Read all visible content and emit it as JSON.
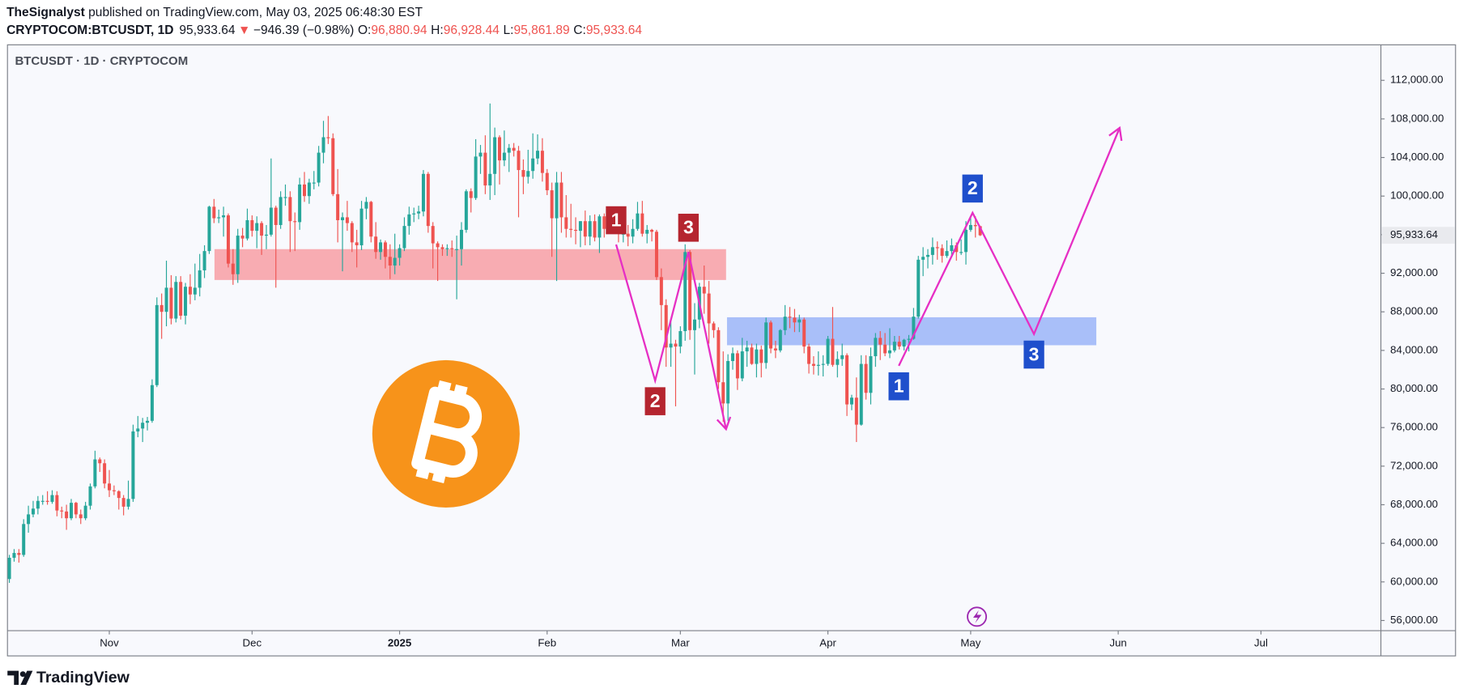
{
  "header": {
    "author": "TheSignalyst",
    "published": " published on TradingView.com, May 03, 2025 06:48:30 EST",
    "symbol": "CRYPTOCOM:BTCUSDT, 1D",
    "last": "95,933.64",
    "arrow": "▼",
    "change": "−946.39 (−0.98%)",
    "fields": [
      {
        "label": "O:",
        "value": "96,880.94"
      },
      {
        "label": "H:",
        "value": "96,928.44"
      },
      {
        "label": "L:",
        "value": "95,861.89"
      },
      {
        "label": "C:",
        "value": "95,933.64"
      }
    ]
  },
  "footer": {
    "brand": "TradingView"
  },
  "chart_data": {
    "type": "candlestick",
    "title": "BTCUSDT · 1D · CRYPTOCOM",
    "up_color": "#26a69a",
    "down_color": "#ef5350",
    "grid": false,
    "last_label": "95,933.64",
    "xlim": [
      -0.4,
      288.2
    ],
    "ylim": [
      54940,
      115680
    ],
    "xticks": [
      {
        "value": 21,
        "label": "Nov"
      },
      {
        "value": 51,
        "label": "Dec"
      },
      {
        "value": 82,
        "label": "2025"
      },
      {
        "value": 113,
        "label": "Feb"
      },
      {
        "value": 141,
        "label": "Mar"
      },
      {
        "value": 172,
        "label": "Apr"
      },
      {
        "value": 202,
        "label": "May"
      },
      {
        "value": 233,
        "label": "Jun"
      },
      {
        "value": 263,
        "label": "Jul"
      }
    ],
    "yticks": [
      {
        "value": 56000,
        "label": "56,000.00"
      },
      {
        "value": 60000,
        "label": "60,000.00"
      },
      {
        "value": 64000,
        "label": "64,000.00"
      },
      {
        "value": 68000,
        "label": "68,000.00"
      },
      {
        "value": 72000,
        "label": "72,000.00"
      },
      {
        "value": 76000,
        "label": "76,000.00"
      },
      {
        "value": 80000,
        "label": "80,000.00"
      },
      {
        "value": 84000,
        "label": "84,000.00"
      },
      {
        "value": 88000,
        "label": "88,000.00"
      },
      {
        "value": 92000,
        "label": "92,000.00"
      },
      {
        "value": 96000,
        "label": "96,000.00"
      },
      {
        "value": 100000,
        "label": "100,000.00"
      },
      {
        "value": 104000,
        "label": "104,000.00"
      },
      {
        "value": 108000,
        "label": "108,000.00"
      },
      {
        "value": 112000,
        "label": "112,000.00"
      }
    ],
    "zones": [
      {
        "color": "#f7a3aa",
        "x": [
          43.1,
          150.6
        ],
        "y": [
          91300,
          94500
        ]
      },
      {
        "color": "#a0b8f8",
        "x": [
          150.8,
          228.4
        ],
        "y": [
          84535,
          87435
        ]
      }
    ],
    "waves": [
      {
        "color": "#e62fc4",
        "label_color": "#b5252f",
        "labels": [
          "1",
          "2",
          "3"
        ],
        "label_side": [
          "above",
          "below",
          "above"
        ],
        "x": [
          127.5,
          135.7,
          142.7,
          150.6
        ],
        "y": [
          94979,
          80859,
          94205,
          75830
        ]
      },
      {
        "color": "#e62fc4",
        "label_color": "#1f4fcc",
        "labels": [
          "1",
          "2",
          "3"
        ],
        "label_side": [
          "below",
          "above",
          "below"
        ],
        "x": [
          186.9,
          202.4,
          215.3,
          233.3
        ],
        "y": [
          82406,
          98267,
          85694,
          107068
        ]
      }
    ],
    "ohlc": [
      [
        60300,
        62800,
        59900,
        62500
      ],
      [
        62500,
        63400,
        62100,
        63000
      ],
      [
        63000,
        63400,
        62000,
        62800
      ],
      [
        62800,
        66500,
        62600,
        66000
      ],
      [
        66000,
        67900,
        65100,
        67000
      ],
      [
        67000,
        68400,
        66700,
        67600
      ],
      [
        67600,
        68900,
        67000,
        68400
      ],
      [
        68400,
        69000,
        68000,
        68400
      ],
      [
        68400,
        69400,
        68000,
        68300
      ],
      [
        68300,
        69500,
        68100,
        69000
      ],
      [
        69000,
        69400,
        66800,
        67400
      ],
      [
        67400,
        67800,
        66600,
        67300
      ],
      [
        67300,
        68000,
        65400,
        66600
      ],
      [
        66600,
        68600,
        66400,
        68200
      ],
      [
        68200,
        68300,
        66600,
        67000
      ],
      [
        67000,
        67500,
        66000,
        66600
      ],
      [
        66600,
        68300,
        66400,
        67900
      ],
      [
        67900,
        70200,
        67500,
        69900
      ],
      [
        69900,
        73600,
        69700,
        72700
      ],
      [
        72700,
        72900,
        71400,
        72300
      ],
      [
        72300,
        72700,
        69700,
        70200
      ],
      [
        70200,
        71600,
        68800,
        69500
      ],
      [
        69500,
        70000,
        69000,
        69400
      ],
      [
        69400,
        69500,
        67500,
        68700
      ],
      [
        68700,
        69000,
        66900,
        67800
      ],
      [
        67800,
        70500,
        67500,
        68600
      ],
      [
        68600,
        76300,
        68300,
        75600
      ],
      [
        75600,
        77200,
        75000,
        75900
      ],
      [
        75900,
        77000,
        74500,
        76500
      ],
      [
        76500,
        77100,
        75700,
        76700
      ],
      [
        76700,
        81000,
        76500,
        80400
      ],
      [
        80400,
        89500,
        80200,
        88700
      ],
      [
        88700,
        89900,
        85200,
        88000
      ],
      [
        88000,
        93300,
        86500,
        90500
      ],
      [
        90500,
        91800,
        86700,
        87300
      ],
      [
        87300,
        91700,
        86900,
        91100
      ],
      [
        91100,
        91700,
        87200,
        87600
      ],
      [
        87600,
        91000,
        86700,
        90600
      ],
      [
        90600,
        91900,
        88800,
        89800
      ],
      [
        89800,
        93000,
        89200,
        90500
      ],
      [
        90500,
        94000,
        89600,
        92300
      ],
      [
        92300,
        94900,
        91500,
        94300
      ],
      [
        94300,
        99000,
        94000,
        98900
      ],
      [
        98900,
        99700,
        97200,
        97700
      ],
      [
        97700,
        98600,
        97200,
        97800
      ],
      [
        97800,
        98900,
        95800,
        98000
      ],
      [
        98000,
        98200,
        92600,
        93000
      ],
      [
        93000,
        94500,
        90800,
        91900
      ],
      [
        91900,
        96600,
        91000,
        95900
      ],
      [
        95900,
        96700,
        94700,
        95600
      ],
      [
        95600,
        98700,
        95400,
        97500
      ],
      [
        97500,
        98000,
        95800,
        96400
      ],
      [
        96400,
        97900,
        94600,
        97200
      ],
      [
        97200,
        97400,
        93900,
        95900
      ],
      [
        95900,
        97000,
        94500,
        96000
      ],
      [
        96000,
        103900,
        95800,
        98800
      ],
      [
        98800,
        99000,
        90500,
        97000
      ],
      [
        97000,
        100500,
        96600,
        99900
      ],
      [
        99900,
        101200,
        99000,
        99900
      ],
      [
        99900,
        100500,
        94200,
        97400
      ],
      [
        97400,
        98300,
        94300,
        97300
      ],
      [
        97300,
        101900,
        96500,
        101200
      ],
      [
        101200,
        102500,
        99400,
        100000
      ],
      [
        100000,
        101800,
        99200,
        101400
      ],
      [
        101400,
        102600,
        100700,
        101400
      ],
      [
        101400,
        105200,
        101000,
        104500
      ],
      [
        104500,
        107800,
        103400,
        106100
      ],
      [
        106100,
        108300,
        105400,
        106000
      ],
      [
        106000,
        106500,
        100000,
        100200
      ],
      [
        100200,
        102800,
        95200,
        97500
      ],
      [
        97500,
        98300,
        92200,
        97800
      ],
      [
        97800,
        99500,
        96400,
        97200
      ],
      [
        97200,
        97400,
        94200,
        95200
      ],
      [
        95200,
        96500,
        92600,
        94900
      ],
      [
        94900,
        99500,
        94400,
        98700
      ],
      [
        98700,
        99900,
        97600,
        99400
      ],
      [
        99400,
        99500,
        95200,
        95800
      ],
      [
        95800,
        97300,
        93500,
        94200
      ],
      [
        94200,
        95500,
        93400,
        95200
      ],
      [
        95200,
        95400,
        92500,
        93700
      ],
      [
        93700,
        95000,
        91400,
        92800
      ],
      [
        92800,
        96100,
        91900,
        93600
      ],
      [
        93600,
        95000,
        92800,
        94600
      ],
      [
        94600,
        97800,
        94300,
        96900
      ],
      [
        96900,
        98900,
        96000,
        98100
      ],
      [
        98100,
        98800,
        97300,
        98200
      ],
      [
        98200,
        99000,
        97600,
        98400
      ],
      [
        98400,
        102700,
        97900,
        102300
      ],
      [
        102300,
        102500,
        96200,
        96900
      ],
      [
        96900,
        97300,
        92500,
        95100
      ],
      [
        95100,
        95300,
        91200,
        94700
      ],
      [
        94700,
        95000,
        93800,
        94500
      ],
      [
        94500,
        95000,
        93800,
        94600
      ],
      [
        94600,
        95400,
        93700,
        94500
      ],
      [
        94500,
        95900,
        89300,
        94500
      ],
      [
        94500,
        97300,
        92800,
        96500
      ],
      [
        96500,
        100700,
        96200,
        100500
      ],
      [
        100500,
        100800,
        98300,
        99800
      ],
      [
        99800,
        105900,
        99600,
        104100
      ],
      [
        104100,
        105300,
        102300,
        104500
      ],
      [
        104500,
        106300,
        100200,
        101100
      ],
      [
        101100,
        109600,
        99600,
        102300
      ],
      [
        102300,
        107100,
        100100,
        106100
      ],
      [
        106100,
        106300,
        101200,
        103700
      ],
      [
        103700,
        106800,
        103100,
        104500
      ],
      [
        104500,
        105400,
        102500,
        105000
      ],
      [
        105000,
        105500,
        104100,
        104700
      ],
      [
        104700,
        105200,
        97800,
        102700
      ],
      [
        102700,
        103800,
        100200,
        102000
      ],
      [
        102000,
        104800,
        101300,
        102600
      ],
      [
        102600,
        106500,
        101800,
        103900
      ],
      [
        103900,
        106400,
        103300,
        104700
      ],
      [
        104700,
        106000,
        101500,
        102400
      ],
      [
        102400,
        102800,
        100100,
        100600
      ],
      [
        100600,
        101400,
        93700,
        97700
      ],
      [
        97700,
        102500,
        91200,
        101400
      ],
      [
        101400,
        102500,
        96200,
        97800
      ],
      [
        97800,
        100100,
        95700,
        96600
      ],
      [
        96600,
        99200,
        95700,
        96500
      ],
      [
        96500,
        97800,
        95000,
        96400
      ],
      [
        96400,
        97400,
        94700,
        97400
      ],
      [
        97400,
        98500,
        94900,
        95800
      ],
      [
        95800,
        98000,
        94900,
        97400
      ],
      [
        97400,
        98100,
        95300,
        95700
      ],
      [
        95700,
        98100,
        94100,
        97900
      ],
      [
        97900,
        98200,
        95700,
        96600
      ],
      [
        96600,
        98700,
        96300,
        97500
      ],
      [
        97500,
        97700,
        96500,
        97500
      ],
      [
        97500,
        97800,
        95200,
        96100
      ],
      [
        96100,
        96700,
        95200,
        96100
      ],
      [
        96100,
        97000,
        94800,
        95800
      ],
      [
        95800,
        97600,
        95100,
        96600
      ],
      [
        96600,
        99400,
        96400,
        98200
      ],
      [
        98200,
        99500,
        95800,
        96100
      ],
      [
        96100,
        97000,
        95100,
        96500
      ],
      [
        96500,
        96600,
        95300,
        96300
      ],
      [
        96300,
        96500,
        91300,
        91600
      ],
      [
        91600,
        92500,
        86100,
        88700
      ],
      [
        88700,
        89300,
        82300,
        84300
      ],
      [
        84300,
        87000,
        82300,
        84700
      ],
      [
        84700,
        85100,
        78200,
        84400
      ],
      [
        84400,
        86500,
        83700,
        86000
      ],
      [
        86000,
        95000,
        85000,
        94200
      ],
      [
        94200,
        94400,
        85100,
        86100
      ],
      [
        86100,
        88900,
        81500,
        87200
      ],
      [
        87200,
        91000,
        86300,
        90600
      ],
      [
        90600,
        92800,
        87800,
        89900
      ],
      [
        89900,
        91200,
        84700,
        86800
      ],
      [
        86800,
        87000,
        85300,
        86100
      ],
      [
        86100,
        86400,
        80000,
        80700
      ],
      [
        80700,
        83900,
        76600,
        78500
      ],
      [
        78500,
        83600,
        76700,
        82900
      ],
      [
        82900,
        84300,
        82000,
        83700
      ],
      [
        83700,
        84000,
        79900,
        81100
      ],
      [
        81100,
        85300,
        80800,
        83900
      ],
      [
        83900,
        85000,
        82300,
        84300
      ],
      [
        84300,
        84700,
        82500,
        82600
      ],
      [
        82600,
        84700,
        81200,
        84100
      ],
      [
        84100,
        84500,
        81200,
        82700
      ],
      [
        82700,
        87400,
        82100,
        86900
      ],
      [
        86900,
        87100,
        83700,
        84200
      ],
      [
        84200,
        85000,
        83200,
        84000
      ],
      [
        84000,
        86200,
        83800,
        86100
      ],
      [
        86100,
        88700,
        85600,
        87500
      ],
      [
        87500,
        88500,
        86300,
        87400
      ],
      [
        87400,
        88300,
        85900,
        86900
      ],
      [
        86900,
        87700,
        85900,
        87200
      ],
      [
        87200,
        87400,
        83700,
        84400
      ],
      [
        84400,
        84700,
        81600,
        82600
      ],
      [
        82600,
        83400,
        81500,
        82400
      ],
      [
        82400,
        83900,
        81400,
        82500
      ],
      [
        82500,
        83500,
        81300,
        82600
      ],
      [
        82600,
        85500,
        82400,
        85200
      ],
      [
        85200,
        88500,
        82300,
        82500
      ],
      [
        82500,
        83900,
        81200,
        83100
      ],
      [
        83100,
        84700,
        82400,
        83500
      ],
      [
        83500,
        83700,
        77200,
        78400
      ],
      [
        78400,
        79400,
        77800,
        79100
      ],
      [
        79100,
        81200,
        74500,
        76300
      ],
      [
        76300,
        83500,
        76200,
        82600
      ],
      [
        82600,
        83500,
        78900,
        79600
      ],
      [
        79600,
        84300,
        78400,
        83400
      ],
      [
        83400,
        85800,
        82300,
        85300
      ],
      [
        85300,
        86000,
        83000,
        84600
      ],
      [
        84600,
        85800,
        83400,
        83700
      ],
      [
        83700,
        86300,
        83200,
        84000
      ],
      [
        84000,
        85500,
        83800,
        84900
      ],
      [
        84900,
        85500,
        84100,
        84400
      ],
      [
        84400,
        85200,
        84000,
        85100
      ],
      [
        85100,
        85600,
        83900,
        85200
      ],
      [
        85200,
        88400,
        85100,
        87500
      ],
      [
        87500,
        93800,
        87300,
        93400
      ],
      [
        93400,
        94700,
        91700,
        93700
      ],
      [
        93700,
        94500,
        92500,
        93900
      ],
      [
        93900,
        95700,
        92900,
        94700
      ],
      [
        94700,
        95300,
        93400,
        94600
      ],
      [
        94600,
        95000,
        93100,
        93800
      ],
      [
        93800,
        95400,
        93600,
        94300
      ],
      [
        94300,
        95600,
        93900,
        94900
      ],
      [
        94900,
        95200,
        93300,
        94200
      ],
      [
        94200,
        95500,
        93900,
        94200
      ],
      [
        94200,
        97400,
        92900,
        96500
      ],
      [
        96500,
        97900,
        96300,
        97000
      ],
      [
        97000,
        97900,
        95700,
        96880.94
      ],
      [
        96880.94,
        96928.44,
        95861.89,
        95933.64
      ]
    ]
  }
}
